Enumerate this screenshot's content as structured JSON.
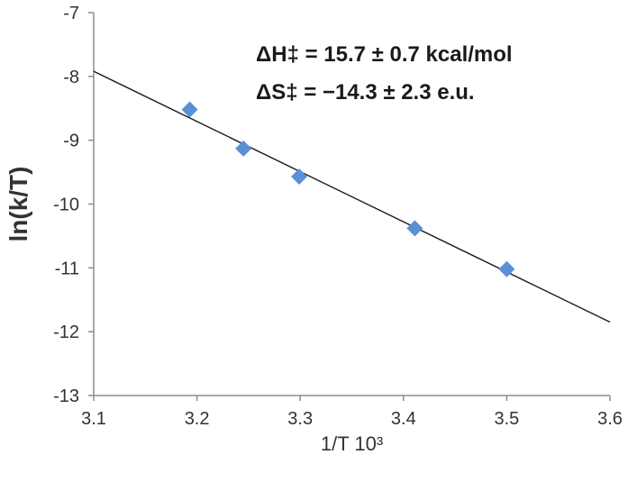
{
  "chart_data": {
    "type": "scatter",
    "xlabel": "1/T  10³",
    "ylabel": "ln(k/T)",
    "xlim": [
      3.1,
      3.6
    ],
    "ylim": [
      -13,
      -7
    ],
    "x_ticks": [
      3.1,
      3.2,
      3.3,
      3.4,
      3.5,
      3.6
    ],
    "y_ticks": [
      -7,
      -8,
      -9,
      -10,
      -11,
      -12,
      -13
    ],
    "x_tick_labels": [
      "3.1",
      "3.2",
      "3.3",
      "3.4",
      "3.5",
      "3.6"
    ],
    "y_tick_labels": [
      "-7",
      "-8",
      "-9",
      "-10",
      "-11",
      "-12",
      "-13"
    ],
    "grid": false,
    "series": [
      {
        "marker": "diamond",
        "color": "#5b8fd6",
        "x": [
          3.193,
          3.245,
          3.299,
          3.411,
          3.5
        ],
        "y": [
          -8.52,
          -9.13,
          -9.57,
          -10.38,
          -11.02
        ]
      }
    ],
    "trendline": {
      "color": "#1a1a1a",
      "x": [
        3.1,
        3.6
      ],
      "y": [
        -7.92,
        -11.85
      ]
    },
    "annotations": [
      "ΔH‡ = 15.7 ± 0.7 kcal/mol",
      "ΔS‡ = −14.3 ± 2.3 e.u."
    ]
  }
}
